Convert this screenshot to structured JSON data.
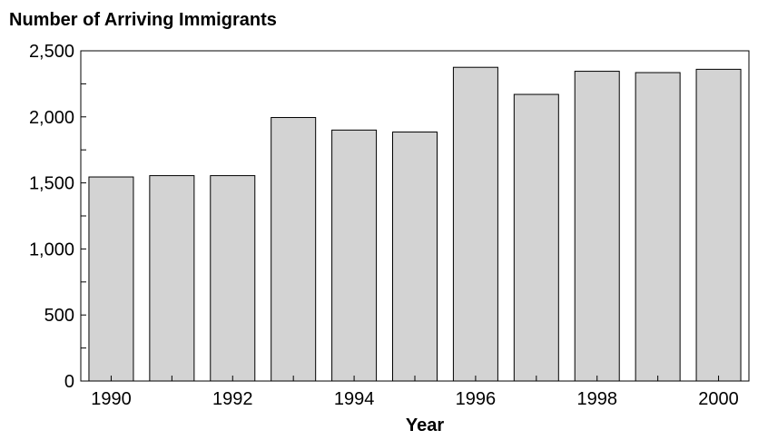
{
  "chart_data": {
    "type": "bar",
    "title": "Number of Arriving Immigrants",
    "xlabel": "Year",
    "ylabel": "",
    "categories": [
      "1990",
      "1991",
      "1992",
      "1993",
      "1994",
      "1995",
      "1996",
      "1997",
      "1998",
      "1999",
      "2000"
    ],
    "values": [
      1545,
      1555,
      1555,
      1995,
      1900,
      1885,
      2375,
      2170,
      2345,
      2335,
      2360
    ],
    "x_tick_labels": [
      "1990",
      "",
      "1992",
      "",
      "1994",
      "",
      "1996",
      "",
      "1998",
      "",
      "2000"
    ],
    "ylim": [
      0,
      2500
    ],
    "y_ticks": [
      0,
      500,
      1000,
      1500,
      2000,
      2500
    ],
    "y_tick_labels": [
      "0",
      "500",
      "1,000",
      "1,500",
      "2,000",
      "2,500"
    ],
    "bar_color": "#d3d3d3",
    "grid": false,
    "legend": "none"
  }
}
